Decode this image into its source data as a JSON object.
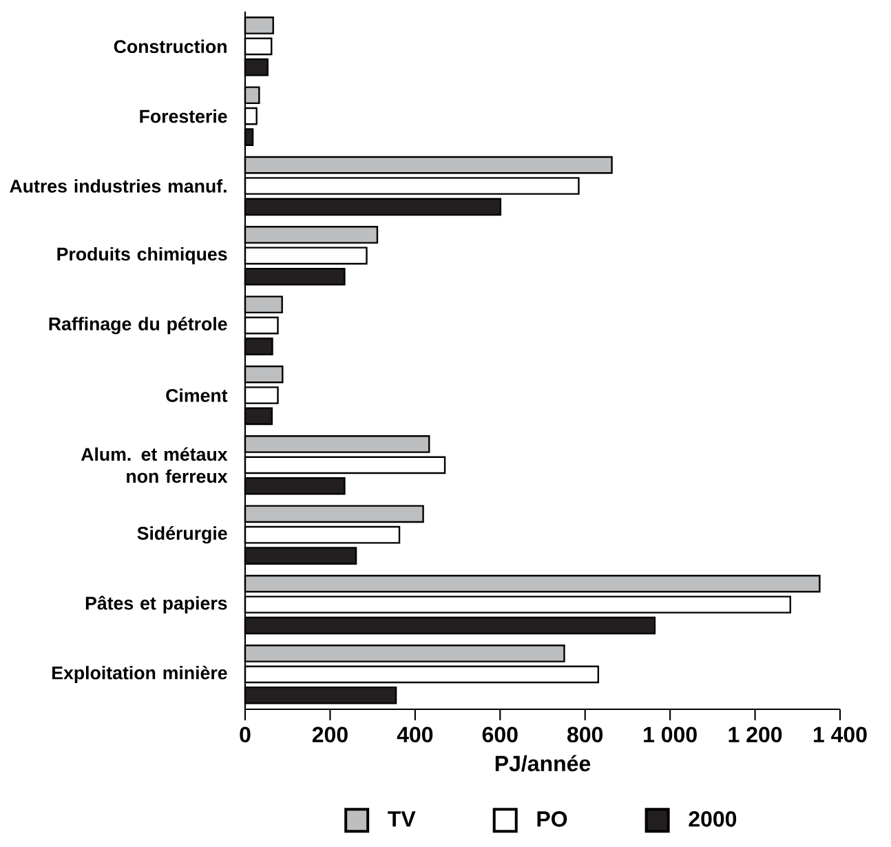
{
  "chart_data": {
    "type": "bar",
    "orientation": "horizontal",
    "xlabel": "PJ/année",
    "categories": [
      "Construction",
      "Foresterie",
      "Autres industries manuf.",
      "Produits chimiques",
      "Raffinage du pétrole",
      "Ciment",
      "Alum. et métaux non ferreux",
      "Sidérurgie",
      "Pâtes et papiers",
      "Exploitation minière"
    ],
    "series": [
      {
        "name": "TV",
        "color": "#bdbec0",
        "values": [
          66,
          33,
          863,
          311,
          87,
          88,
          433,
          419,
          1352,
          751
        ]
      },
      {
        "name": "PO",
        "color": "#ffffff",
        "values": [
          62,
          27,
          785,
          286,
          77,
          77,
          470,
          363,
          1283,
          831
        ]
      },
      {
        "name": "2000",
        "color": "#231f20",
        "values": [
          53,
          18,
          601,
          234,
          64,
          63,
          234,
          261,
          964,
          355
        ]
      }
    ],
    "xlim": [
      0,
      1400
    ],
    "xticks": [
      0,
      200,
      400,
      600,
      800,
      {
        "value": 1000,
        "label": "1 000"
      },
      {
        "value": 1200,
        "label": "1 200"
      },
      {
        "value": 1400,
        "label": "1 400"
      }
    ],
    "legend": "bottom"
  }
}
